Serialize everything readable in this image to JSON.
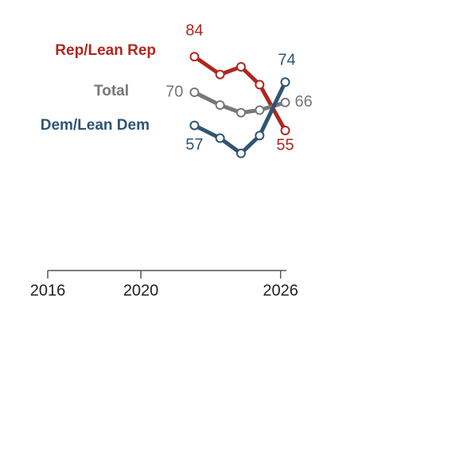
{
  "chart_data": {
    "type": "line",
    "x": [
      2022.3,
      2023.4,
      2024.3,
      2025.1,
      2026.2
    ],
    "series": [
      {
        "name": "Rep/Lean Rep",
        "color": "#b0271f",
        "values": [
          84,
          77,
          80,
          73,
          55
        ]
      },
      {
        "name": "Total",
        "color": "#777777",
        "values": [
          70,
          65,
          62,
          63,
          66
        ]
      },
      {
        "name": "Dem/Lean Dem",
        "color": "#2f5573",
        "values": [
          57,
          52,
          46,
          53,
          74
        ]
      }
    ],
    "xlim": [
      2016,
      2026.25
    ],
    "xticks": [
      2016,
      2020,
      2026
    ],
    "ylim": [
      0,
      100
    ]
  }
}
